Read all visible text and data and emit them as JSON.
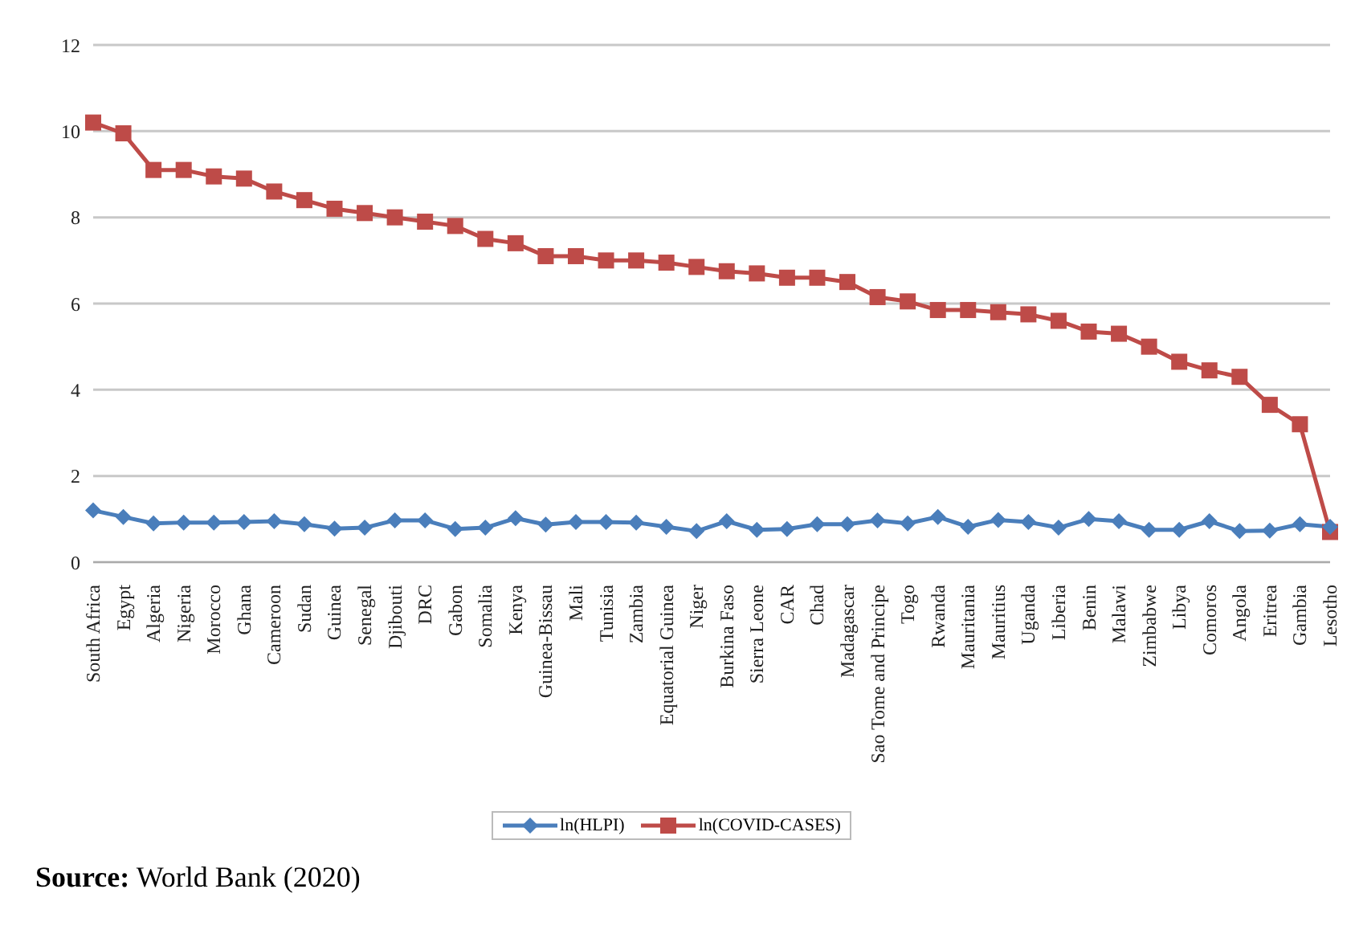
{
  "chart_data": {
    "type": "line",
    "categories": [
      "South Africa",
      "Egypt",
      "Algeria",
      "Nigeria",
      "Morocco",
      "Ghana",
      "Cameroon",
      "Sudan",
      "Guinea",
      "Senegal",
      "Djibouti",
      "DRC",
      "Gabon",
      "Somalia",
      "Kenya",
      "Guinea-Bissau",
      "Mali",
      "Tunisia",
      "Zambia",
      "Equatorial Guinea",
      "Niger",
      "Burkina Faso",
      "Sierra Leone",
      "CAR",
      "Chad",
      "Madagascar",
      "Sao Tome and Principe",
      "Togo",
      "Rwanda",
      "Mauritania",
      "Mauritius",
      "Uganda",
      "Liberia",
      "Benin",
      "Malawi",
      "Zimbabwe",
      "Libya",
      "Comoros",
      "Angola",
      "Eritrea",
      "Gambia",
      "Lesotho"
    ],
    "series": [
      {
        "name": "ln(HLPI)",
        "color": "#4a7ebb",
        "marker": "diamond",
        "values": [
          1.2,
          1.05,
          0.9,
          0.92,
          0.92,
          0.93,
          0.95,
          0.88,
          0.78,
          0.8,
          0.97,
          0.97,
          0.77,
          0.8,
          1.02,
          0.87,
          0.93,
          0.93,
          0.92,
          0.82,
          0.72,
          0.95,
          0.75,
          0.77,
          0.88,
          0.88,
          0.97,
          0.9,
          1.05,
          0.82,
          0.98,
          0.93,
          0.8,
          1.0,
          0.95,
          0.75,
          0.75,
          0.95,
          0.72,
          0.73,
          0.88,
          0.82
        ]
      },
      {
        "name": "ln(COVID-CASES)",
        "color": "#be4b48",
        "marker": "square",
        "values": [
          10.2,
          9.95,
          9.1,
          9.1,
          8.95,
          8.9,
          8.6,
          8.4,
          8.2,
          8.1,
          8.0,
          7.9,
          7.8,
          7.5,
          7.4,
          7.1,
          7.1,
          7.0,
          7.0,
          6.95,
          6.85,
          6.75,
          6.7,
          6.6,
          6.6,
          6.5,
          6.15,
          6.05,
          5.85,
          5.85,
          5.8,
          5.75,
          5.6,
          5.35,
          5.3,
          5.0,
          4.65,
          4.45,
          4.3,
          3.65,
          3.2,
          0.7
        ]
      }
    ],
    "ylim": [
      0,
      12
    ],
    "yticks": [
      0,
      2,
      4,
      6,
      8,
      10,
      12
    ],
    "grid": "y",
    "legend": "bottom",
    "annotations": [
      "Source: World Bank (2020)"
    ]
  }
}
